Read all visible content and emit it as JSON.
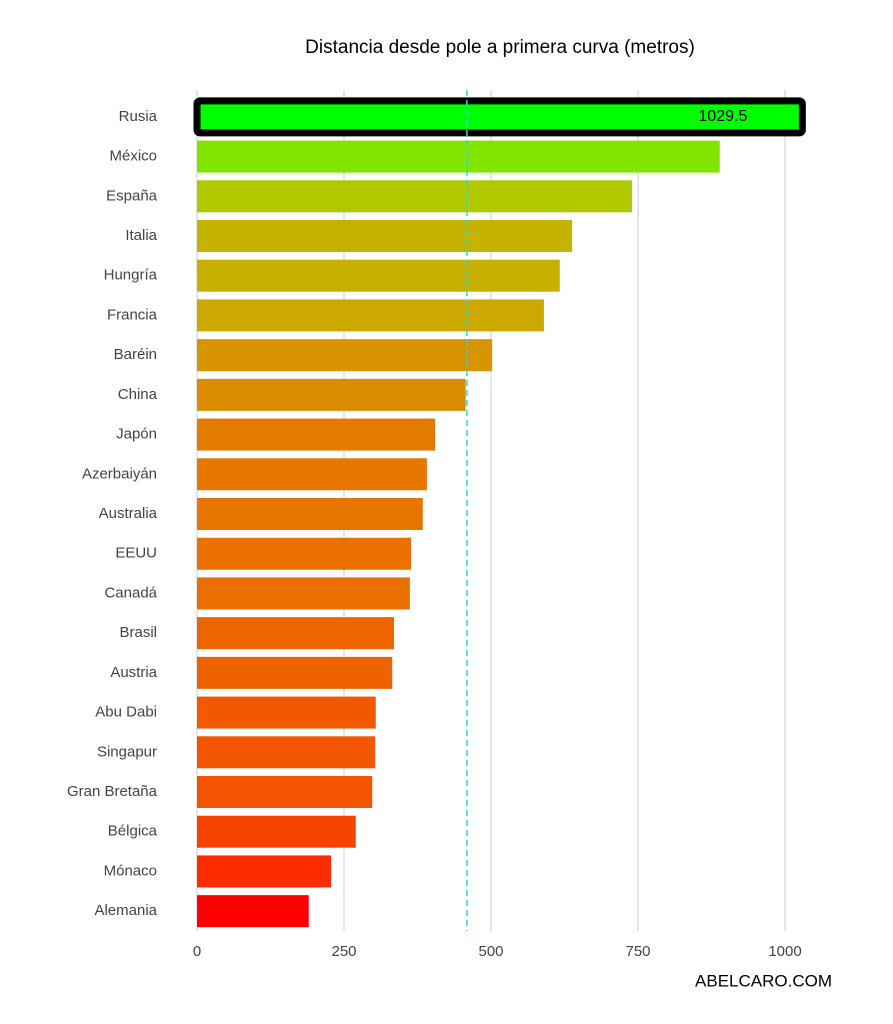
{
  "chart_data": {
    "type": "bar",
    "orientation": "horizontal",
    "title": "Distancia desde pole a primera curva (metros)",
    "categories": [
      "Rusia",
      "México",
      "España",
      "Italia",
      "Hungría",
      "Francia",
      "Baréin",
      "China",
      "Japón",
      "Azerbaiyán",
      "Australia",
      "EEUU",
      "Canadá",
      "Brasil",
      "Austria",
      "Abu Dabi",
      "Singapur",
      "Gran Bretaña",
      "Bélgica",
      "Mónaco",
      "Alemania"
    ],
    "values": [
      1029.5,
      889,
      740,
      638,
      617,
      590,
      502,
      457,
      405,
      391,
      384,
      364,
      362,
      335,
      332,
      304,
      303,
      298,
      270,
      228,
      190
    ],
    "colors": [
      "#00ff00",
      "#80e600",
      "#b0c800",
      "#c4b400",
      "#c8b000",
      "#cca800",
      "#d89400",
      "#dc8c00",
      "#e47a00",
      "#e67800",
      "#e67600",
      "#ea7000",
      "#ea6e00",
      "#ee6400",
      "#ee6200",
      "#f25800",
      "#f25600",
      "#f25400",
      "#f64400",
      "#fa2c00",
      "#ff0000"
    ],
    "highlight_index": 0,
    "reference_line": 459,
    "xlim": [
      0,
      1050
    ],
    "xticks": [
      0,
      250,
      500,
      750,
      1000
    ],
    "grid": true,
    "watermark": "ABELCARO.COM"
  }
}
